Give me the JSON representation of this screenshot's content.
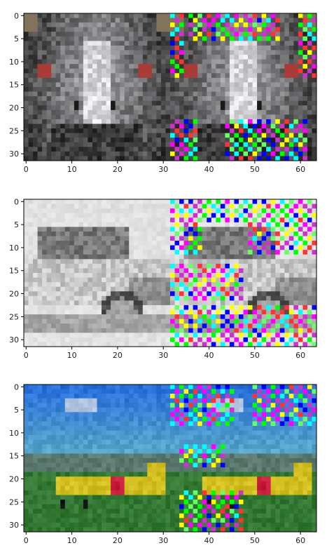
{
  "chart_data": [
    {
      "type": "heatmap",
      "title": "",
      "xlabel": "",
      "ylabel": "",
      "xlim": [
        -0.5,
        63.5
      ],
      "ylim": [
        31.5,
        -0.5
      ],
      "x_ticks": [
        "0",
        "10",
        "20",
        "30",
        "40",
        "50",
        "60"
      ],
      "y_ticks": [
        "0",
        "5",
        "10",
        "15",
        "20",
        "25",
        "30"
      ],
      "panels": [
        {
          "name": "original",
          "x_range": [
            0,
            31
          ],
          "subject": "emu-face"
        },
        {
          "name": "perturbed",
          "x_range": [
            32,
            63
          ],
          "subject": "emu-face"
        }
      ]
    },
    {
      "type": "heatmap",
      "title": "",
      "xlabel": "",
      "ylabel": "",
      "xlim": [
        -0.5,
        63.5
      ],
      "ylim": [
        31.5,
        -0.5
      ],
      "x_ticks": [
        "0",
        "10",
        "20",
        "30",
        "40",
        "50",
        "60"
      ],
      "y_ticks": [
        "0",
        "5",
        "10",
        "15",
        "20",
        "25",
        "30"
      ],
      "panels": [
        {
          "name": "original",
          "x_range": [
            0,
            31
          ],
          "subject": "vintage-car-grayscale"
        },
        {
          "name": "perturbed",
          "x_range": [
            32,
            63
          ],
          "subject": "vintage-car-grayscale"
        }
      ]
    },
    {
      "type": "heatmap",
      "title": "",
      "xlabel": "",
      "ylabel": "",
      "xlim": [
        -0.5,
        63.5
      ],
      "ylim": [
        31.5,
        -0.5
      ],
      "x_ticks": [
        "0",
        "10",
        "20",
        "30",
        "40",
        "50",
        "60"
      ],
      "y_ticks": [
        "0",
        "5",
        "10",
        "15",
        "20",
        "25",
        "30"
      ],
      "panels": [
        {
          "name": "original",
          "x_range": [
            0,
            31
          ],
          "subject": "yellow-biplane"
        },
        {
          "name": "perturbed",
          "x_range": [
            32,
            63
          ],
          "subject": "yellow-biplane"
        }
      ]
    }
  ],
  "colors": {
    "axis": "#000000",
    "noise_palette": [
      "#ff00ff",
      "#00ff00",
      "#ffff00",
      "#0000ff",
      "#ff3333",
      "#00ffff",
      "#66ff66",
      "#cc33cc"
    ]
  }
}
